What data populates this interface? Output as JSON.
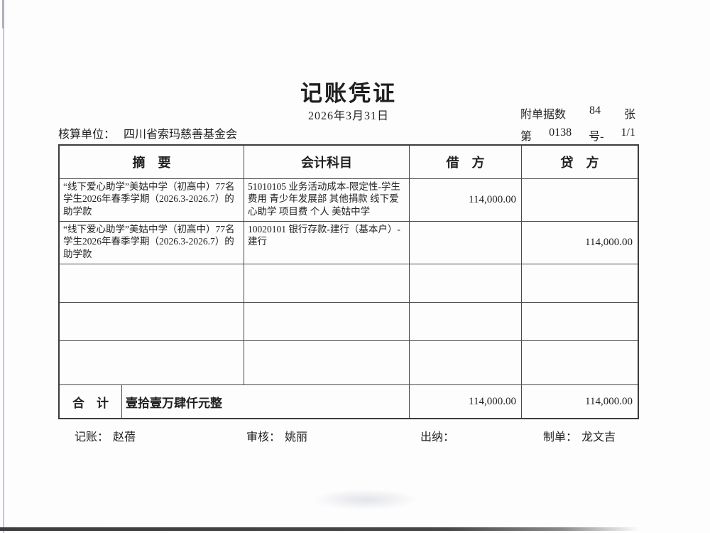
{
  "document": {
    "title": "记账凭证",
    "date": "2026年3月31日",
    "attachment_label": "附单据数",
    "attachment_count": "84",
    "attachment_unit": "张",
    "number_prefix": "第",
    "number": "0138",
    "number_suffix": "号-",
    "page": "1/1",
    "unit_label": "核算单位：",
    "unit_name": "四川省索玛慈善基金会"
  },
  "table": {
    "headers": {
      "summary": "摘　要",
      "account": "会计科目",
      "debit": "借　方",
      "credit": "贷　方"
    },
    "rows": [
      {
        "summary": "“线下爱心助学”美姑中学（初高中）77名学生2026年春季学期（2026.3-2026.7）的助学款",
        "account": "51010105 业务活动成本-限定性-学生费用 青少年发展部 其他捐款 线下爱心助学 项目费 个人 美姑中学",
        "debit": "114,000.00",
        "credit": ""
      },
      {
        "summary": "“线下爱心助学”美姑中学（初高中）77名学生2026年春季学期（2026.3-2026.7）的助学款",
        "account": "10020101 银行存款-建行（基本户）-建行",
        "debit": "",
        "credit": "114,000.00"
      },
      {
        "summary": "",
        "account": "",
        "debit": "",
        "credit": ""
      },
      {
        "summary": "",
        "account": "",
        "debit": "",
        "credit": ""
      },
      {
        "summary": "",
        "account": "",
        "debit": "",
        "credit": ""
      }
    ],
    "total": {
      "label": "合　计",
      "amount_in_words": "壹拾壹万肆仟元整",
      "debit": "114,000.00",
      "credit": "114,000.00"
    }
  },
  "footer": {
    "bookkeeper_label": "记账：",
    "bookkeeper": "赵蓓",
    "reviewer_label": "审核：",
    "reviewer": "姚丽",
    "cashier_label": "出纳：",
    "cashier": "",
    "preparer_label": "制单：",
    "preparer": "龙文吉"
  }
}
